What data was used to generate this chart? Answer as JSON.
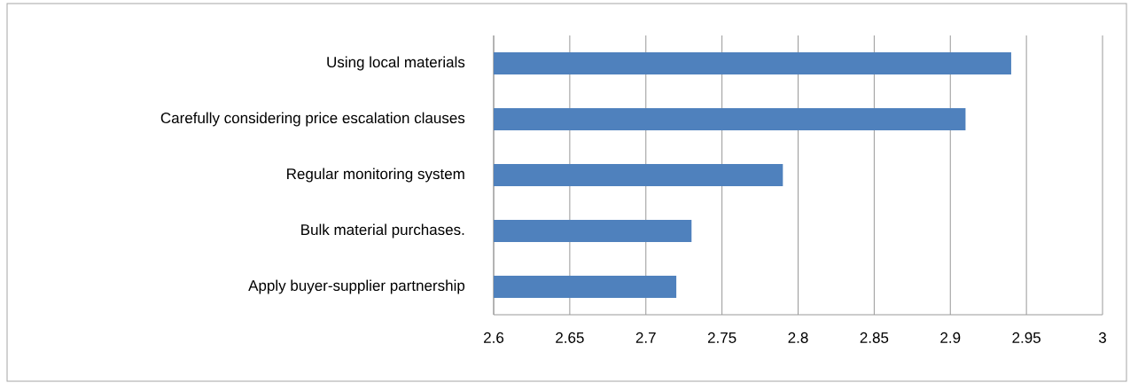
{
  "chart_data": {
    "type": "bar",
    "orientation": "horizontal",
    "categories": [
      "Using local materials",
      "Carefully considering price escalation clauses",
      "Regular monitoring system",
      "Bulk material purchases.",
      "Apply buyer-supplier partnership"
    ],
    "values": [
      2.94,
      2.91,
      2.79,
      2.73,
      2.72
    ],
    "color": "#4f81bd",
    "xlim": [
      2.6,
      3
    ],
    "xticks": [
      2.6,
      2.65,
      2.7,
      2.75,
      2.8,
      2.85,
      2.9,
      2.95,
      3
    ],
    "grid": "x",
    "legend": false
  }
}
